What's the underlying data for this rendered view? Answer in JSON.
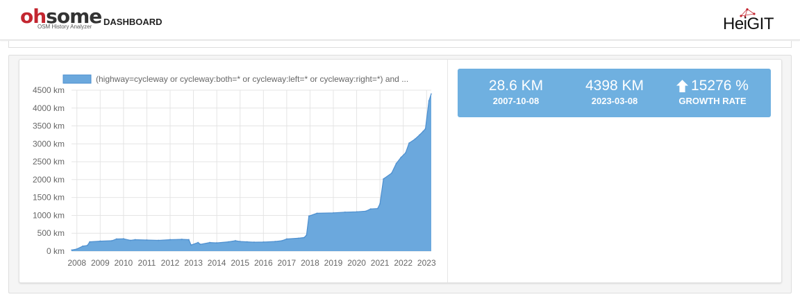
{
  "header": {
    "logo_part1": "oh",
    "logo_part2": "some",
    "logo_subtitle": "OSM History Analyzer",
    "logo_dashboard": "DASHBOARD",
    "partner_logo_text": "HeiGIT"
  },
  "stats": {
    "start_value": "28.6 KM",
    "start_date": "2007-10-08",
    "end_value": "4398 KM",
    "end_date": "2023-03-08",
    "growth_value": "15276 %",
    "growth_label": "GROWTH RATE",
    "growth_icon": "arrow-up-icon"
  },
  "colors": {
    "accent": "#6fb0e0",
    "area_fill": "#6ba8dd",
    "area_line": "#4d8fcf",
    "brand_red": "#c32630"
  },
  "chart_data": {
    "type": "area",
    "legend": "(highway=cycleway or cycleway:both=* or cycleway:left=* or cycleway:right=*) and ...",
    "legend_position": "top-left",
    "grid": true,
    "ylim": [
      0,
      4500
    ],
    "xlim": [
      2007.77,
      2023.2
    ],
    "y_ticks": [
      0,
      500,
      1000,
      1500,
      2000,
      2500,
      3000,
      3500,
      4000,
      4500
    ],
    "y_tick_labels": [
      "0 km",
      "500 km",
      "1000 km",
      "1500 km",
      "2000 km",
      "2500 km",
      "3000 km",
      "3500 km",
      "4000 km",
      "4500 km"
    ],
    "x_ticks": [
      2008,
      2009,
      2010,
      2011,
      2012,
      2013,
      2014,
      2015,
      2016,
      2017,
      2018,
      2019,
      2020,
      2021,
      2022,
      2023
    ],
    "x_tick_labels": [
      "2008",
      "2009",
      "2010",
      "2011",
      "2012",
      "2013",
      "2014",
      "2015",
      "2016",
      "2017",
      "2018",
      "2019",
      "2020",
      "2021",
      "2022",
      "2023"
    ],
    "x": [
      2007.77,
      2008.0,
      2008.25,
      2008.45,
      2008.55,
      2009.0,
      2009.5,
      2009.7,
      2010.0,
      2010.3,
      2010.5,
      2011.0,
      2011.5,
      2012.0,
      2012.5,
      2012.8,
      2012.9,
      2013.2,
      2013.3,
      2013.7,
      2014.0,
      2014.5,
      2014.8,
      2015.0,
      2015.3,
      2015.6,
      2016.0,
      2016.5,
      2016.8,
      2017.0,
      2017.5,
      2017.75,
      2017.85,
      2017.95,
      2018.3,
      2019.0,
      2019.5,
      2020.0,
      2020.4,
      2020.6,
      2020.9,
      2021.0,
      2021.15,
      2021.5,
      2021.7,
      2021.9,
      2022.1,
      2022.25,
      2022.5,
      2022.7,
      2022.85,
      2022.95,
      2023.1,
      2023.2
    ],
    "y": [
      28.6,
      60,
      140,
      160,
      260,
      280,
      290,
      340,
      345,
      300,
      320,
      310,
      300,
      320,
      330,
      320,
      170,
      240,
      190,
      240,
      230,
      260,
      290,
      270,
      260,
      250,
      255,
      270,
      290,
      340,
      360,
      380,
      450,
      980,
      1060,
      1070,
      1090,
      1100,
      1120,
      1180,
      1190,
      1320,
      2020,
      2180,
      2450,
      2620,
      2750,
      3020,
      3130,
      3250,
      3350,
      3420,
      4200,
      4398
    ]
  }
}
